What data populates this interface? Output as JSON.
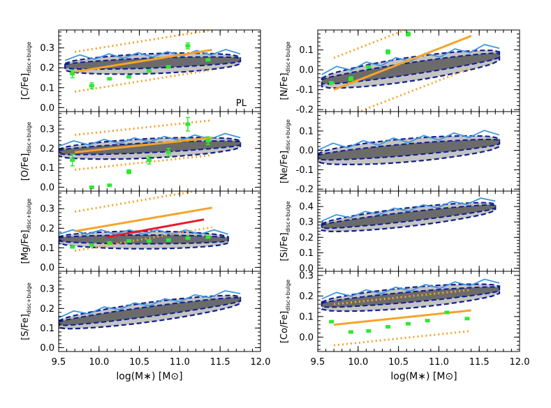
{
  "figure": {
    "xlabel": "log(M∗) [M⊙]",
    "x_ticks": [
      "9.5",
      "10.0",
      "10.5",
      "11.0",
      "11.5",
      "12.0"
    ],
    "annotation": "PL"
  },
  "colors": {
    "contour_light": "#c4c4c4",
    "contour_dark": "#6b6b6b",
    "dashed": "#0f1f8a",
    "blue_line": "#3f95e0",
    "fit": "#f5a42a",
    "red_fit": "#e8182a",
    "obs": "#2ee832"
  },
  "chart_data": [
    {
      "type": "scatter",
      "ylabel": "[C/Fe]disc+bulge",
      "ylim": [
        -0.02,
        0.39
      ],
      "yticks": [
        0.0,
        0.1,
        0.2,
        0.3
      ],
      "fit": {
        "x": [
          9.7,
          11.4
        ],
        "y": [
          0.18,
          0.29
        ],
        "scatter": 0.1
      },
      "obs": [
        [
          9.67,
          0.17,
          0.02
        ],
        [
          9.91,
          0.11,
          0.015
        ],
        [
          10.13,
          0.145,
          0
        ],
        [
          10.37,
          0.155,
          0
        ],
        [
          10.62,
          0.185,
          0
        ],
        [
          10.86,
          0.205,
          0
        ],
        [
          11.1,
          0.31,
          0.015
        ],
        [
          11.35,
          0.24,
          0
        ]
      ],
      "contour": {
        "x0": 9.58,
        "x1": 11.75,
        "ymid": 0.22,
        "slope": 0.015,
        "w": 0.05
      }
    },
    {
      "type": "scatter",
      "ylabel": "[N/Fe]disc+bulge",
      "ylim": [
        -0.21,
        0.2
      ],
      "yticks": [
        -0.2,
        -0.1,
        0.0,
        0.1
      ],
      "fit": {
        "x": [
          9.7,
          11.4
        ],
        "y": [
          -0.1,
          0.17
        ],
        "scatter": 0.16
      },
      "obs": [
        [
          9.67,
          -0.065,
          0
        ],
        [
          9.91,
          -0.045,
          0.01
        ],
        [
          10.13,
          0.015,
          0
        ],
        [
          10.37,
          0.09,
          0.01
        ],
        [
          10.62,
          0.18,
          0.01
        ]
      ],
      "contour": {
        "x0": 9.55,
        "x1": 11.75,
        "ymid": 0.0,
        "slope": 0.06,
        "w": 0.06
      }
    },
    {
      "type": "scatter",
      "ylabel": "[O/Fe]disc+bulge",
      "ylim": [
        -0.02,
        0.39
      ],
      "yticks": [
        0.0,
        0.1,
        0.2,
        0.3
      ],
      "fit": {
        "x": [
          9.7,
          11.4
        ],
        "y": [
          0.18,
          0.255
        ],
        "scatter": 0.09
      },
      "obs": [
        [
          9.67,
          0.14,
          0.03
        ],
        [
          9.91,
          0.0,
          0
        ],
        [
          10.13,
          0.01,
          0
        ],
        [
          10.37,
          0.08,
          0.01
        ],
        [
          10.62,
          0.14,
          0.02
        ],
        [
          10.86,
          0.18,
          0.02
        ],
        [
          11.1,
          0.325,
          0.035
        ],
        [
          11.35,
          0.24,
          0.02
        ]
      ],
      "contour": {
        "x0": 9.5,
        "x1": 11.75,
        "ymid": 0.2,
        "slope": 0.02,
        "w": 0.05
      }
    },
    {
      "type": "scatter",
      "ylabel": "[Ne/Fe]disc+bulge",
      "ylim": [
        -0.21,
        0.2
      ],
      "yticks": [
        -0.2,
        -0.1,
        0.0,
        0.1
      ],
      "fit": null,
      "obs": [],
      "contour": {
        "x0": 9.5,
        "x1": 11.75,
        "ymid": 0.0,
        "slope": 0.035,
        "w": 0.06
      }
    },
    {
      "type": "scatter",
      "ylabel": "[Mg/Fe]disc+bulge",
      "ylim": [
        -0.02,
        0.39
      ],
      "yticks": [
        0.0,
        0.1,
        0.2,
        0.3
      ],
      "fit": {
        "x": [
          9.7,
          11.4
        ],
        "y": [
          0.185,
          0.305
        ],
        "scatter": 0.1
      },
      "red_fit": {
        "x": [
          10.1,
          11.3
        ],
        "y": [
          0.155,
          0.245
        ]
      },
      "obs": [
        [
          9.67,
          0.105,
          0
        ],
        [
          9.91,
          0.115,
          0
        ],
        [
          10.13,
          0.125,
          0
        ],
        [
          10.37,
          0.135,
          0
        ],
        [
          10.62,
          0.135,
          0
        ],
        [
          10.86,
          0.14,
          0
        ],
        [
          11.1,
          0.15,
          0
        ],
        [
          11.35,
          0.155,
          0
        ]
      ],
      "contour": {
        "x0": 9.5,
        "x1": 11.6,
        "ymid": 0.14,
        "slope": 0.0,
        "w": 0.045
      }
    },
    {
      "type": "scatter",
      "ylabel": "[Si/Fe]disc+bulge",
      "ylim": [
        -0.02,
        0.5
      ],
      "yticks": [
        0.0,
        0.1,
        0.2,
        0.3,
        0.4
      ],
      "fit": null,
      "obs": [],
      "contour": {
        "x0": 9.55,
        "x1": 11.7,
        "ymid": 0.33,
        "slope": 0.06,
        "w": 0.06
      }
    },
    {
      "type": "scatter",
      "ylabel": "[S/Fe]disc+bulge",
      "ylim": [
        -0.02,
        0.39
      ],
      "yticks": [
        0.0,
        0.1,
        0.2,
        0.3
      ],
      "fit": null,
      "obs": [],
      "contour": {
        "x0": 9.5,
        "x1": 11.75,
        "ymid": 0.18,
        "slope": 0.055,
        "w": 0.05
      }
    },
    {
      "type": "scatter",
      "ylabel": "[Co/Fe]disc+bulge",
      "ylim": [
        -0.07,
        0.32
      ],
      "yticks": [
        0.0,
        0.1,
        0.2,
        0.3
      ],
      "fit": {
        "x": [
          9.7,
          11.4
        ],
        "y": [
          0.06,
          0.13
        ],
        "scatter": 0.1
      },
      "obs": [
        [
          9.67,
          0.075,
          0
        ],
        [
          9.91,
          0.025,
          0
        ],
        [
          10.13,
          0.03,
          0
        ],
        [
          10.37,
          0.05,
          0
        ],
        [
          10.62,
          0.065,
          0
        ],
        [
          10.86,
          0.08,
          0
        ],
        [
          11.1,
          0.12,
          0
        ],
        [
          11.35,
          0.09,
          0
        ]
      ],
      "contour": {
        "x0": 9.55,
        "x1": 11.75,
        "ymid": 0.19,
        "slope": 0.035,
        "w": 0.05
      }
    }
  ]
}
